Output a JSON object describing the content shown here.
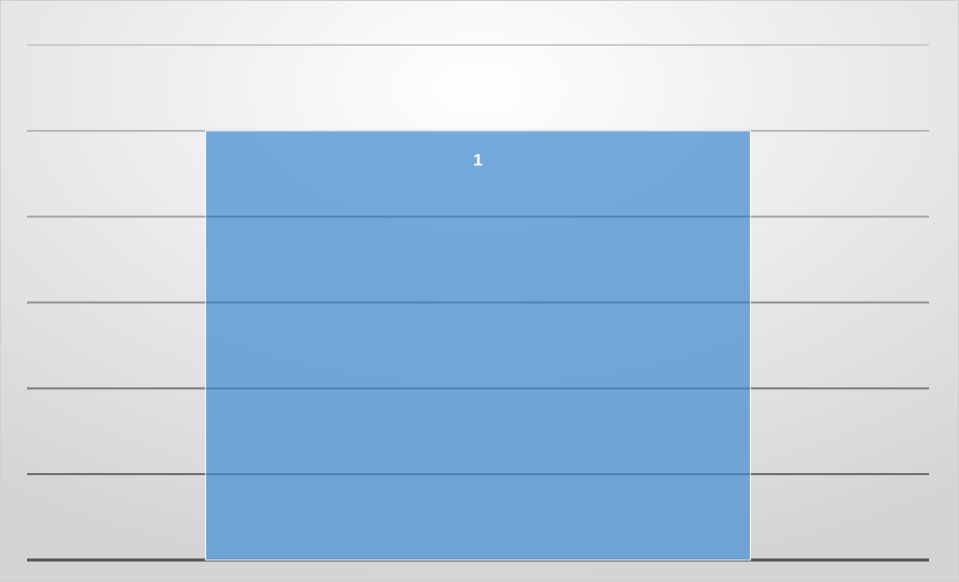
{
  "chart_data": {
    "type": "bar",
    "categories": [
      null
    ],
    "values": [
      1
    ],
    "color": "#5b9bd5",
    "ylim": [
      0,
      1.2
    ],
    "yticks": [
      0,
      0.2,
      0.4,
      0.6,
      0.8,
      1,
      1.2
    ],
    "grid": true
  }
}
